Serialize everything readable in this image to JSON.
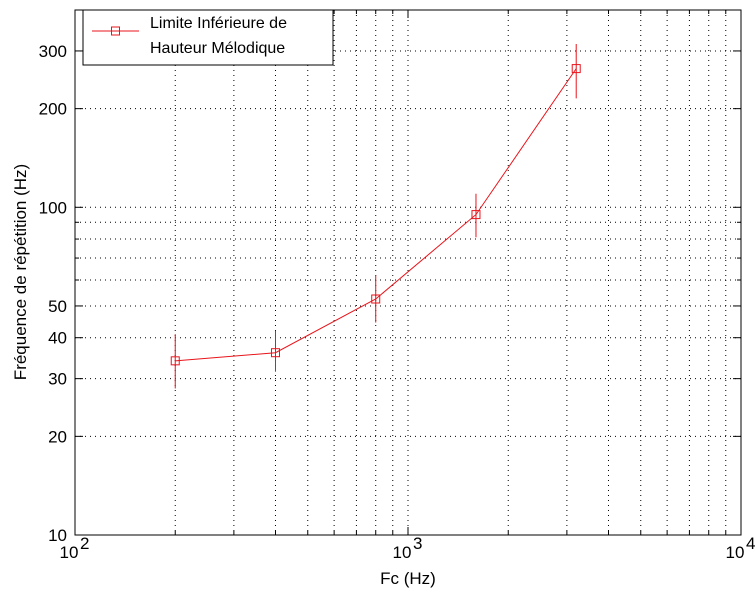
{
  "chart_data": {
    "type": "line",
    "x_scale": "log",
    "y_scale": "log",
    "xlabel": "Fc (Hz)",
    "ylabel": "Fréquence de répétition (Hz)",
    "xlim": [
      100,
      10000
    ],
    "ylim": [
      10,
      400
    ],
    "grid": true,
    "legend_position": "top-left",
    "x_ticks": [
      {
        "value": 100,
        "base": "10",
        "exp": "2"
      },
      {
        "value": 1000,
        "base": "10",
        "exp": "3"
      },
      {
        "value": 10000,
        "base": "10",
        "exp": "4"
      }
    ],
    "y_ticks": [
      {
        "value": 10,
        "label": "10"
      },
      {
        "value": 20,
        "label": "20"
      },
      {
        "value": 30,
        "label": "30"
      },
      {
        "value": 40,
        "label": "40"
      },
      {
        "value": 50,
        "label": "50"
      },
      {
        "value": 100,
        "label": "100"
      },
      {
        "value": 200,
        "label": "200"
      },
      {
        "value": 300,
        "label": "300"
      }
    ],
    "series": [
      {
        "name_lines": [
          "Limite Inférieure de",
          "Hauteur Mélodique"
        ],
        "color": "#e8141b",
        "marker": "square",
        "points": [
          {
            "x": 200,
            "y": 34,
            "err_low": 28,
            "err_high": 41
          },
          {
            "x": 400,
            "y": 36,
            "err_low": 31.5,
            "err_high": 42
          },
          {
            "x": 800,
            "y": 52.5,
            "err_low": 44.5,
            "err_high": 62
          },
          {
            "x": 1600,
            "y": 95,
            "err_low": 81,
            "err_high": 110
          },
          {
            "x": 3200,
            "y": 265,
            "err_low": 215,
            "err_high": 315
          }
        ]
      }
    ]
  }
}
